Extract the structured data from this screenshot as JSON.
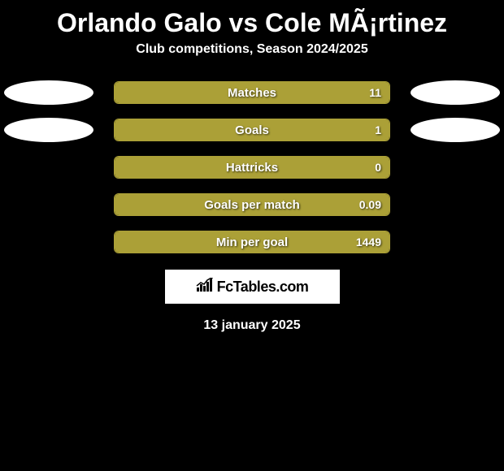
{
  "title": "Orlando Galo vs Cole MÃ¡rtinez",
  "subtitle": "Club competitions, Season 2024/2025",
  "background_color": "#000000",
  "bar_fill_color": "#aba037",
  "bar_border_color": "#aba037",
  "text_color": "#ffffff",
  "ellipse_color": "#ffffff",
  "stats": [
    {
      "label": "Matches",
      "value": "11",
      "fill_percent": 100,
      "show_left_ellipse": true,
      "show_right_ellipse": true
    },
    {
      "label": "Goals",
      "value": "1",
      "fill_percent": 100,
      "show_left_ellipse": true,
      "show_right_ellipse": true
    },
    {
      "label": "Hattricks",
      "value": "0",
      "fill_percent": 100,
      "show_left_ellipse": false,
      "show_right_ellipse": false
    },
    {
      "label": "Goals per match",
      "value": "0.09",
      "fill_percent": 100,
      "show_left_ellipse": false,
      "show_right_ellipse": false
    },
    {
      "label": "Min per goal",
      "value": "1449",
      "fill_percent": 100,
      "show_left_ellipse": false,
      "show_right_ellipse": false
    }
  ],
  "logo": {
    "text": "FcTables.com",
    "background": "#ffffff",
    "text_color": "#000000"
  },
  "date": "13 january 2025",
  "styling": {
    "title_fontsize": 32,
    "subtitle_fontsize": 16,
    "bar_label_fontsize": 15,
    "bar_value_fontsize": 14,
    "bar_container_width": 340,
    "bar_container_height": 28,
    "bar_border_radius": 6,
    "ellipse_width": 110,
    "ellipse_height": 30
  }
}
